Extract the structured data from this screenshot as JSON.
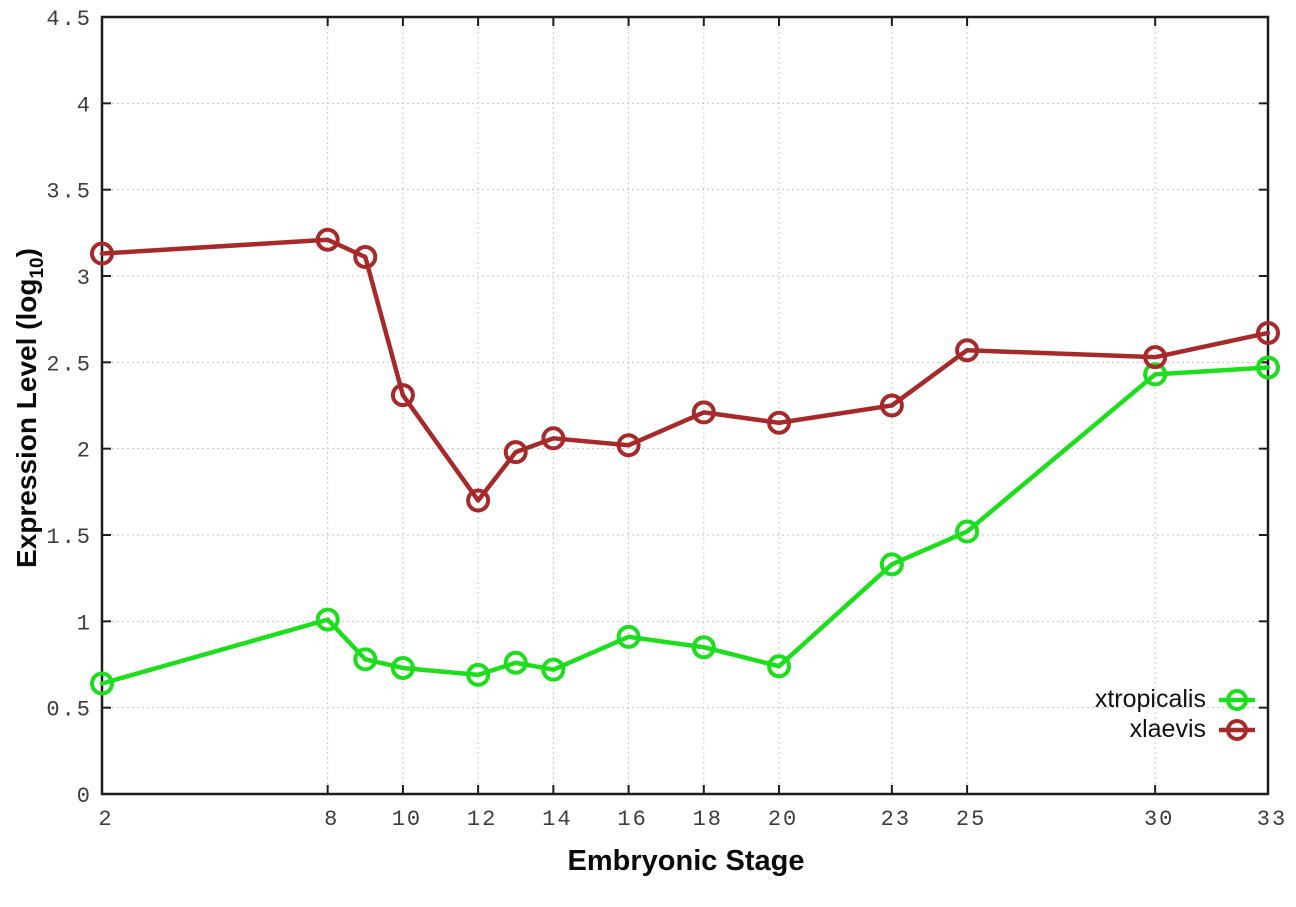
{
  "chart_data": {
    "type": "line",
    "title": "",
    "xlabel": "Embryonic Stage",
    "ylabel_prefix": "Expression Level (log",
    "ylabel_sub": "10",
    "ylabel_suffix": ")",
    "xlim": [
      2,
      33
    ],
    "ylim": [
      0,
      4.5
    ],
    "grid": true,
    "legend_position": "inside-bottom-right",
    "marker": "open-circle",
    "x": [
      2,
      8,
      9,
      10,
      12,
      13,
      14,
      16,
      18,
      20,
      23,
      25,
      30,
      33
    ],
    "series": [
      {
        "name": "xtropicalis",
        "color": "#1dde1d",
        "values": [
          0.64,
          1.01,
          0.78,
          0.73,
          0.69,
          0.76,
          0.72,
          0.91,
          0.85,
          0.74,
          1.33,
          1.52,
          2.43,
          2.47
        ]
      },
      {
        "name": "xlaevis",
        "color": "#a62a2a",
        "values": [
          3.13,
          3.21,
          3.11,
          2.31,
          1.7,
          1.98,
          2.06,
          2.02,
          2.21,
          2.15,
          2.25,
          2.57,
          2.53,
          2.67
        ]
      }
    ],
    "xticks": [
      2,
      8,
      10,
      12,
      14,
      16,
      18,
      20,
      23,
      25,
      30,
      33
    ],
    "xtick_labels": [
      "2",
      "8",
      "10",
      "12",
      "14",
      "16",
      "18",
      "20",
      "23",
      "25",
      "30",
      "33"
    ],
    "yticks": [
      0,
      0.5,
      1,
      1.5,
      2,
      2.5,
      3,
      3.5,
      4,
      4.5
    ],
    "ytick_labels": [
      "0",
      "0.5",
      "1",
      "1.5",
      "2",
      "2.5",
      "3",
      "3.5",
      "4",
      "4.5"
    ]
  }
}
